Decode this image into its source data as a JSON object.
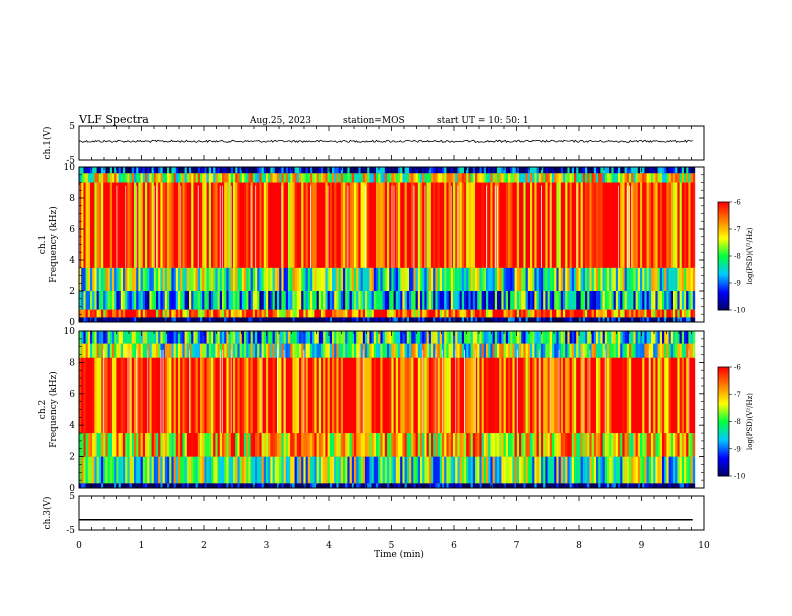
{
  "header": {
    "title": "VLF Spectra",
    "date": "Aug.25, 2023",
    "station": "station=MOS",
    "start": "start  UT  =   10: 50: 1"
  },
  "chart_data": [
    {
      "type": "line",
      "panel": "ch1-waveform",
      "ylabel": "ch.1(V)",
      "ylim": [
        -5,
        5
      ],
      "yticks": [
        "5",
        "-5"
      ],
      "x": [
        0,
        9.83
      ],
      "values": [
        0.5,
        0.5
      ]
    },
    {
      "type": "heatmap",
      "panel": "ch1-spectrogram",
      "ylabel": "ch.1\nFrequency (kHz)",
      "ylim": [
        0,
        10
      ],
      "yticks": [
        "0",
        "2",
        "4",
        "6",
        "8",
        "10"
      ],
      "xlim": [
        0,
        10
      ],
      "colorbar": {
        "label": "log(PSD)(V²/Hz)",
        "range": [
          -10,
          -6
        ],
        "ticks": [
          "-6",
          "-7",
          "-8",
          "-9",
          "-10"
        ]
      },
      "bands_khz": [
        {
          "from": 0.0,
          "to": 0.3,
          "level": -10
        },
        {
          "from": 0.3,
          "to": 0.8,
          "level": -6.5
        },
        {
          "from": 0.8,
          "to": 2.0,
          "level": -8.5
        },
        {
          "from": 2.0,
          "to": 3.5,
          "level": -8.0
        },
        {
          "from": 3.5,
          "to": 9.0,
          "level": -6.3
        },
        {
          "from": 9.0,
          "to": 9.6,
          "level": -7.5
        },
        {
          "from": 9.6,
          "to": 10.0,
          "level": -9.5
        }
      ]
    },
    {
      "type": "heatmap",
      "panel": "ch2-spectrogram",
      "ylabel": "ch.2\nFrequency (kHz)",
      "ylim": [
        0,
        10
      ],
      "yticks": [
        "0",
        "2",
        "4",
        "6",
        "8",
        "10"
      ],
      "xlim": [
        0,
        10
      ],
      "colorbar": {
        "label": "log(PSD)(V²/Hz)",
        "range": [
          -10,
          -6
        ],
        "ticks": [
          "-6",
          "-7",
          "-8",
          "-9",
          "-10"
        ]
      },
      "bands_khz": [
        {
          "from": 0.0,
          "to": 0.3,
          "level": -10
        },
        {
          "from": 0.3,
          "to": 2.0,
          "level": -8.0
        },
        {
          "from": 2.0,
          "to": 3.5,
          "level": -7.0
        },
        {
          "from": 3.5,
          "to": 8.3,
          "level": -6.2
        },
        {
          "from": 8.3,
          "to": 9.2,
          "level": -7.8
        },
        {
          "from": 9.2,
          "to": 10.0,
          "level": -8.3
        }
      ]
    },
    {
      "type": "line",
      "panel": "ch3-waveform",
      "ylabel": "ch.3(V)",
      "xlabel": "Time  (min)",
      "ylim": [
        -5,
        5
      ],
      "yticks": [
        "5",
        "-5"
      ],
      "xlim": [
        0,
        10
      ],
      "xticks": [
        "0",
        "1",
        "2",
        "3",
        "4",
        "5",
        "6",
        "7",
        "8",
        "9",
        "10"
      ],
      "x": [
        0,
        9.83
      ],
      "values": [
        -2,
        -2
      ]
    }
  ],
  "colors": {
    "scale": [
      "#000060",
      "#0000ff",
      "#00c8ff",
      "#00ff40",
      "#ffff00",
      "#ff8000",
      "#ff0000",
      "#ffffff"
    ],
    "axis": "#000000"
  }
}
